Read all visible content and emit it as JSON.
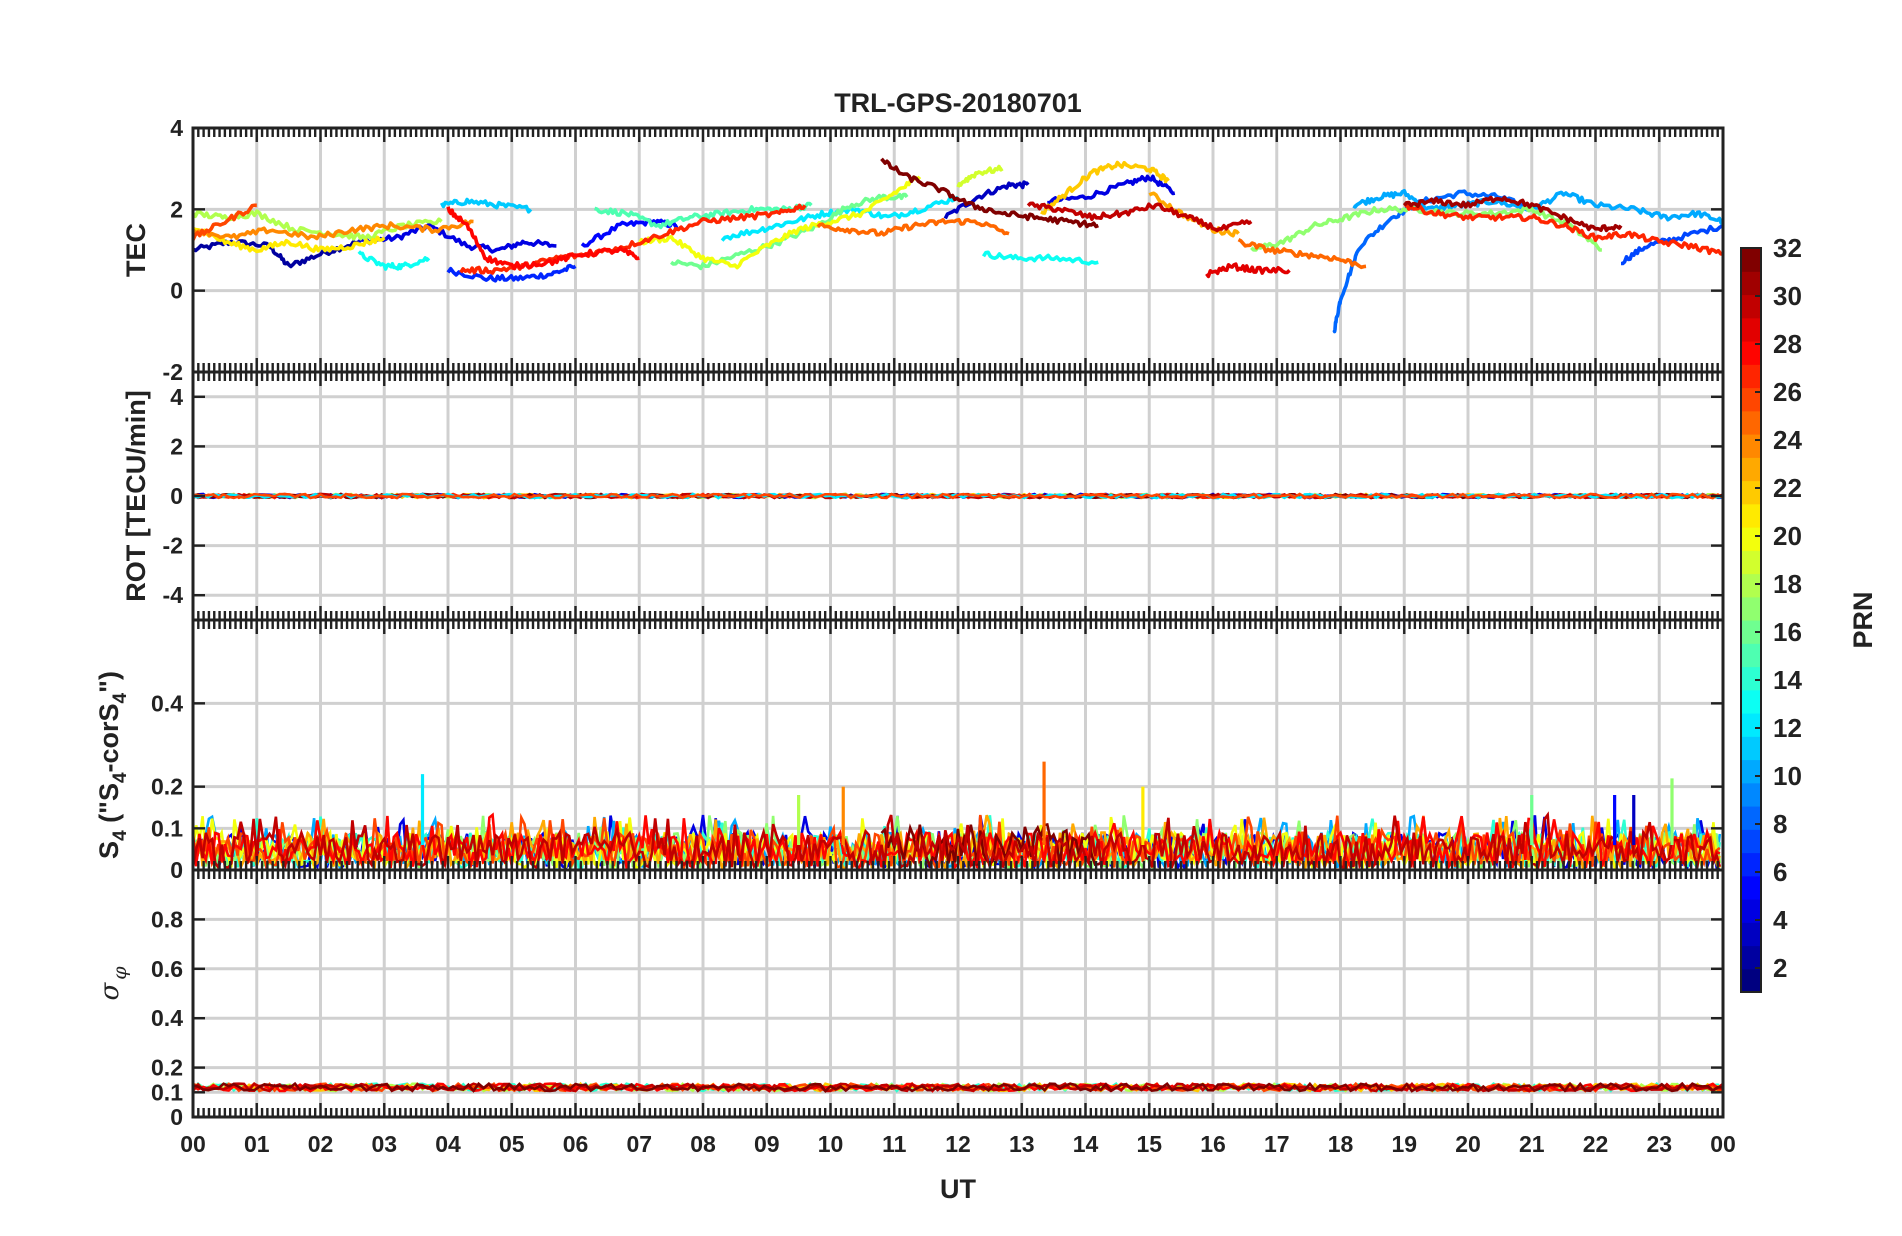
{
  "chart_data": {
    "type": "line",
    "title": "TRL-GPS-20180701",
    "xlabel": "UT",
    "x_tick_labels": [
      "00",
      "01",
      "02",
      "03",
      "04",
      "05",
      "06",
      "07",
      "08",
      "09",
      "10",
      "11",
      "12",
      "13",
      "14",
      "15",
      "16",
      "17",
      "18",
      "19",
      "20",
      "21",
      "22",
      "23",
      "00"
    ],
    "xlim": [
      0,
      24
    ],
    "panels": [
      {
        "id": "tec",
        "ylabel": "TEC",
        "ylim": [
          -2,
          4
        ],
        "yticks": [
          -2,
          0,
          2,
          4
        ],
        "ytick_labels": [
          "-2",
          "0",
          "2",
          "4"
        ],
        "grid": true,
        "series": [
          {
            "name": "PRN 2",
            "prn": 2,
            "x": [
              0.0,
              0.6,
              1.2,
              1.5,
              2.0,
              2.6
            ],
            "y": [
              1.0,
              1.2,
              1.1,
              0.6,
              0.9,
              1.2
            ]
          },
          {
            "name": "PRN 4",
            "prn": 4,
            "x": [
              2.6,
              3.2,
              3.7,
              4.3,
              4.8,
              5.2,
              5.7
            ],
            "y": [
              1.2,
              1.3,
              1.6,
              1.1,
              1.0,
              1.2,
              1.1
            ]
          },
          {
            "name": "PRN 6",
            "prn": 6,
            "x": [
              4.0,
              4.6,
              5.1,
              5.6,
              6.0
            ],
            "y": [
              0.5,
              0.3,
              0.3,
              0.4,
              0.6
            ]
          },
          {
            "name": "PRN 5",
            "prn": 5,
            "x": [
              6.1,
              6.7,
              7.2,
              7.6
            ],
            "y": [
              1.1,
              1.6,
              1.7,
              1.6
            ]
          },
          {
            "name": "PRN 3",
            "prn": 3,
            "x": [
              11.8,
              12.3,
              12.8,
              13.1
            ],
            "y": [
              1.8,
              2.3,
              2.6,
              2.6
            ]
          },
          {
            "name": "PRN 4b",
            "prn": 4,
            "x": [
              13.4,
              14.0,
              14.6,
              15.0,
              15.4
            ],
            "y": [
              2.2,
              2.3,
              2.6,
              2.8,
              2.4
            ]
          },
          {
            "name": "PRN 8",
            "prn": 8,
            "x": [
              17.9,
              18.0,
              18.3,
              18.8,
              19.3,
              19.9,
              20.5,
              21.0
            ],
            "y": [
              -1.0,
              -0.2,
              1.1,
              1.8,
              2.2,
              2.4,
              2.3,
              2.0
            ]
          },
          {
            "name": "PRN 7",
            "prn": 7,
            "x": [
              22.4,
              22.8,
              23.3,
              24.0
            ],
            "y": [
              0.7,
              1.1,
              1.3,
              1.6
            ]
          },
          {
            "name": "PRN 10",
            "prn": 10,
            "x": [
              18.2,
              18.6,
              19.0,
              19.4,
              19.9,
              20.4,
              21.0,
              21.5,
              22.0,
              22.6,
              23.1,
              23.6,
              24.0
            ],
            "y": [
              2.1,
              2.3,
              2.4,
              2.0,
              2.1,
              2.2,
              2.0,
              2.4,
              2.1,
              2.0,
              1.8,
              1.9,
              1.7
            ]
          },
          {
            "name": "PRN 11",
            "prn": 11,
            "x": [
              3.9,
              4.3,
              4.8,
              5.3
            ],
            "y": [
              2.1,
              2.2,
              2.1,
              2.0
            ]
          },
          {
            "name": "PRN 12",
            "prn": 12,
            "x": [
              8.3,
              8.9,
              9.4,
              9.9,
              10.4,
              10.9,
              11.4,
              12.0
            ],
            "y": [
              1.3,
              1.5,
              1.7,
              1.9,
              2.0,
              1.8,
              2.0,
              2.3
            ]
          },
          {
            "name": "PRN 13",
            "prn": 13,
            "x": [
              12.4,
              12.9,
              13.5,
              14.2
            ],
            "y": [
              0.9,
              0.8,
              0.8,
              0.7
            ]
          },
          {
            "name": "PRN 13b",
            "prn": 13,
            "x": [
              2.6,
              3.0,
              3.3,
              3.7
            ],
            "y": [
              0.9,
              0.6,
              0.6,
              0.8
            ]
          },
          {
            "name": "PRN 15",
            "prn": 15,
            "x": [
              6.3,
              6.8,
              7.3,
              7.8,
              8.3,
              8.8,
              9.3,
              9.7
            ],
            "y": [
              2.0,
              1.9,
              1.6,
              1.8,
              1.9,
              2.0,
              2.0,
              2.1
            ]
          },
          {
            "name": "PRN 16",
            "prn": 16,
            "x": [
              7.5,
              8.0,
              8.6,
              9.2,
              9.8,
              10.3,
              10.8,
              11.2
            ],
            "y": [
              0.7,
              0.6,
              0.9,
              1.2,
              1.6,
              2.1,
              2.3,
              2.3
            ]
          },
          {
            "name": "PRN 17",
            "prn": 17,
            "x": [
              16.6,
              17.1,
              17.6,
              18.1,
              18.6,
              19.2,
              19.8,
              20.4,
              21.0,
              21.6,
              22.1
            ],
            "y": [
              1.0,
              1.2,
              1.6,
              1.8,
              2.0,
              2.0,
              1.9,
              1.9,
              2.0,
              1.6,
              1.0
            ]
          },
          {
            "name": "PRN 18",
            "prn": 18,
            "x": [
              0.0,
              0.5,
              1.0,
              1.6,
              2.2,
              2.7,
              3.3,
              3.9
            ],
            "y": [
              1.9,
              1.8,
              1.9,
              1.5,
              1.4,
              1.3,
              1.6,
              1.7
            ]
          },
          {
            "name": "PRN 19",
            "prn": 19,
            "x": [
              12.0,
              12.3,
              12.7
            ],
            "y": [
              2.6,
              2.9,
              3.0
            ]
          },
          {
            "name": "PRN 20",
            "prn": 20,
            "x": [
              7.0,
              7.5,
              8.0,
              8.5,
              9.0,
              9.5,
              10.0,
              10.5,
              11.0,
              11.4
            ],
            "y": [
              1.2,
              1.3,
              0.8,
              0.6,
              1.1,
              1.5,
              1.7,
              1.9,
              2.4,
              2.8
            ]
          },
          {
            "name": "PRN 21",
            "prn": 21,
            "x": [
              0.0,
              0.5,
              1.0,
              1.5,
              2.0,
              2.5,
              3.0
            ],
            "y": [
              1.6,
              1.2,
              1.0,
              1.2,
              1.0,
              1.1,
              1.3
            ]
          },
          {
            "name": "PRN 22",
            "prn": 22,
            "x": [
              13.3,
              13.7,
              14.1,
              14.5,
              15.0,
              15.3
            ],
            "y": [
              1.9,
              2.4,
              2.9,
              3.1,
              3.0,
              2.7
            ]
          },
          {
            "name": "PRN 23",
            "prn": 23,
            "x": [
              15.0,
              15.5,
              16.0,
              16.4
            ],
            "y": [
              2.4,
              1.9,
              1.5,
              1.4
            ]
          },
          {
            "name": "PRN 24",
            "prn": 24,
            "x": [
              0.0,
              0.6,
              1.2,
              1.9,
              2.5,
              3.1,
              3.8,
              4.4
            ],
            "y": [
              1.5,
              1.3,
              1.5,
              1.3,
              1.5,
              1.6,
              1.5,
              1.7
            ]
          },
          {
            "name": "PRN 25",
            "prn": 25,
            "x": [
              9.8,
              10.3,
              10.8,
              11.3,
              11.8,
              12.3,
              12.8
            ],
            "y": [
              1.6,
              1.5,
              1.4,
              1.6,
              1.7,
              1.7,
              1.4
            ]
          },
          {
            "name": "PRN 25b",
            "prn": 25,
            "x": [
              16.4,
              16.9,
              17.4,
              17.9,
              18.4
            ],
            "y": [
              1.2,
              1.0,
              0.9,
              0.8,
              0.6
            ]
          },
          {
            "name": "PRN 26",
            "prn": 26,
            "x": [
              0.0,
              0.5,
              1.0
            ],
            "y": [
              1.3,
              1.7,
              2.1
            ]
          },
          {
            "name": "PRN 27",
            "prn": 27,
            "x": [
              4.2,
              4.7,
              5.2,
              5.7,
              6.2,
              6.8,
              7.4,
              8.0,
              8.6,
              9.2,
              9.6
            ],
            "y": [
              0.5,
              0.5,
              0.6,
              0.8,
              0.9,
              1.1,
              1.4,
              1.7,
              1.8,
              1.9,
              2.1
            ]
          },
          {
            "name": "PRN 27b",
            "prn": 27,
            "x": [
              19.0,
              19.5,
              20.0,
              20.5,
              21.0,
              21.5,
              22.0,
              22.5,
              23.0,
              23.5,
              24.0
            ],
            "y": [
              2.1,
              1.9,
              1.8,
              1.8,
              1.8,
              1.6,
              1.3,
              1.4,
              1.2,
              1.1,
              0.9
            ]
          },
          {
            "name": "PRN 28",
            "prn": 28,
            "x": [
              4.0,
              4.3,
              4.6,
              5.0,
              5.6,
              6.1,
              6.7,
              7.0
            ],
            "y": [
              2.0,
              1.6,
              0.8,
              0.6,
              0.7,
              0.9,
              1.0,
              0.8
            ]
          },
          {
            "name": "PRN 29",
            "prn": 29,
            "x": [
              15.9,
              16.3,
              16.7,
              17.2
            ],
            "y": [
              0.4,
              0.6,
              0.5,
              0.5
            ]
          },
          {
            "name": "PRN 30",
            "prn": 30,
            "x": [
              13.1,
              13.6,
              14.1,
              14.6,
              15.1,
              15.6,
              16.1,
              16.6
            ],
            "y": [
              2.1,
              2.0,
              1.8,
              1.9,
              2.1,
              1.8,
              1.5,
              1.7
            ]
          },
          {
            "name": "PRN 31",
            "prn": 31,
            "x": [
              19.0,
              19.5,
              20.0,
              20.5,
              21.0,
              21.5,
              22.0,
              22.4
            ],
            "y": [
              2.1,
              2.2,
              2.1,
              2.3,
              2.1,
              1.8,
              1.5,
              1.6
            ]
          },
          {
            "name": "PRN 32",
            "prn": 32,
            "x": [
              10.8,
              11.2,
              11.7,
              12.2,
              12.7,
              13.2,
              13.7,
              14.2
            ],
            "y": [
              3.2,
              2.8,
              2.5,
              2.1,
              1.9,
              1.8,
              1.7,
              1.6
            ]
          }
        ]
      },
      {
        "id": "rot",
        "ylabel": "ROT [TECU/min]",
        "ylim": [
          -5,
          5
        ],
        "yticks": [
          -4,
          -2,
          0,
          2,
          4
        ],
        "ytick_labels": [
          "-4",
          "-2",
          "0",
          "2",
          "4"
        ],
        "grid": true,
        "note": "All PRN series near 0 (|ROT| < 0.15 TECU/min) throughout the day",
        "baseline": 0,
        "amplitude": 0.12
      },
      {
        "id": "s4",
        "ylabel_main": "S",
        "ylabel_sub": "4",
        "ylabel_mid": " (\"S",
        "ylabel_sub2": "4",
        "ylabel_mid2": "-corS",
        "ylabel_sub3": "4",
        "ylabel_end": "\")",
        "ylim": [
          0,
          0.6
        ],
        "yticks": [
          0,
          0.1,
          0.2,
          0.4
        ],
        "ytick_labels": [
          "0",
          "0.1",
          "0.2",
          "0.4"
        ],
        "grid": true,
        "baseline": 0.05,
        "typical_range": [
          0.0,
          0.12
        ],
        "spikes": [
          {
            "x": 3.6,
            "y": 0.23,
            "prn": 12
          },
          {
            "x": 9.5,
            "y": 0.18,
            "prn": 18
          },
          {
            "x": 10.2,
            "y": 0.2,
            "prn": 24
          },
          {
            "x": 13.35,
            "y": 0.26,
            "prn": 25
          },
          {
            "x": 14.9,
            "y": 0.2,
            "prn": 21
          },
          {
            "x": 21.0,
            "y": 0.18,
            "prn": 16
          },
          {
            "x": 22.3,
            "y": 0.18,
            "prn": 5
          },
          {
            "x": 22.6,
            "y": 0.18,
            "prn": 3
          },
          {
            "x": 23.2,
            "y": 0.22,
            "prn": 17
          }
        ]
      },
      {
        "id": "sigma",
        "ylabel": "σ",
        "ylabel_sub": "φ",
        "ylim": [
          0,
          1
        ],
        "yticks": [
          0,
          0.1,
          0.2,
          0.4,
          0.6,
          0.8
        ],
        "ytick_labels": [
          "0",
          "0.1",
          "0.2",
          "0.4",
          "0.6",
          "0.8"
        ],
        "grid": true,
        "baseline": 0.12,
        "amplitude": 0.03
      }
    ],
    "colorbar": {
      "label": "PRN",
      "range": [
        1,
        32
      ],
      "ticks": [
        2,
        4,
        6,
        8,
        10,
        12,
        14,
        16,
        18,
        20,
        22,
        24,
        26,
        28,
        30,
        32
      ],
      "tick_labels": [
        "2",
        "4",
        "6",
        "8",
        "10",
        "12",
        "14",
        "16",
        "18",
        "20",
        "22",
        "24",
        "26",
        "28",
        "30",
        "32"
      ],
      "colormap": "jet"
    }
  }
}
